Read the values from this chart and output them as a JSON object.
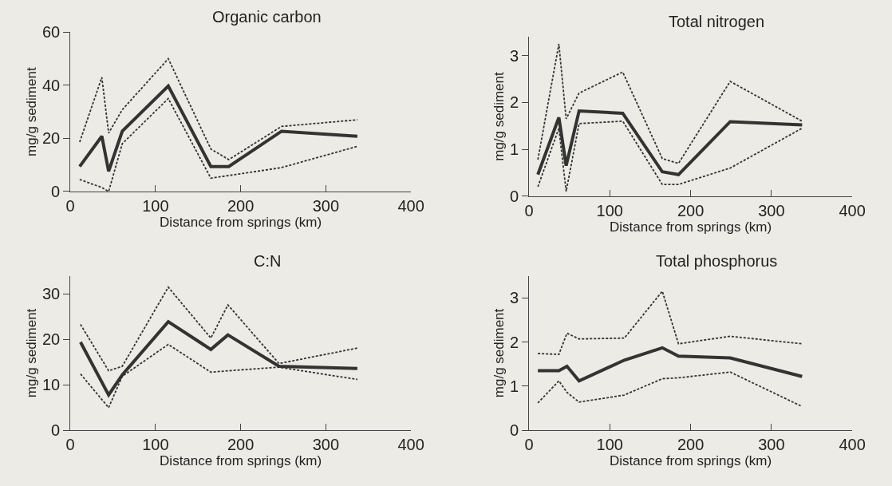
{
  "chart_data": [
    {
      "type": "line",
      "title": "Organic carbon",
      "xlabel": "Distance from springs (km)",
      "ylabel": "mg/g sediment",
      "x": [
        11,
        37,
        45,
        61,
        115,
        165,
        186,
        248,
        337
      ],
      "xlim": [
        0,
        400
      ],
      "xticks": [
        0,
        100,
        200,
        300,
        400
      ],
      "ylim": [
        0,
        60
      ],
      "yticks": [
        0,
        20,
        40,
        60
      ],
      "grid": false,
      "line_style": "solid",
      "series": [
        {
          "color": "#333333",
          "values": [
            9.4,
            20.8,
            7.6,
            22.7,
            39.7,
            9.4,
            9.4,
            22.7,
            20.8
          ]
        },
        {
          "color": "#333333",
          "line_style": "dotted",
          "values": [
            4.5,
            1.5,
            0,
            18,
            35,
            5,
            6,
            9,
            17
          ]
        },
        {
          "color": "#333333",
          "line_style": "dotted",
          "values": [
            18.6,
            43,
            22,
            30.8,
            50,
            16,
            12,
            24.5,
            27
          ]
        }
      ]
    },
    {
      "type": "line",
      "title": "Total nitrogen",
      "xlabel": "Distance from springs (km)",
      "ylabel": "mg/g sediment",
      "x": [
        11,
        37,
        46,
        62,
        116,
        165,
        185,
        249,
        338
      ],
      "xlim": [
        0,
        400
      ],
      "xticks": [
        0,
        100,
        200,
        300,
        400
      ],
      "ylim": [
        0,
        3.4
      ],
      "yticks": [
        0,
        1,
        2,
        3
      ],
      "grid": false,
      "line_style": "solid",
      "series": [
        {
          "color": "#333333",
          "values": [
            0.46,
            1.68,
            0.65,
            1.82,
            1.77,
            0.52,
            0.46,
            1.59,
            1.52
          ]
        },
        {
          "color": "#333333",
          "line_style": "dotted",
          "values": [
            0.2,
            1.45,
            0.1,
            1.55,
            1.6,
            0.25,
            0.25,
            0.6,
            1.45
          ]
        },
        {
          "color": "#333333",
          "line_style": "dotted",
          "values": [
            0.78,
            3.25,
            1.65,
            2.2,
            2.65,
            0.8,
            0.7,
            2.45,
            1.6
          ]
        }
      ]
    },
    {
      "type": "line",
      "title": "C:N",
      "xlabel": "Distance from springs (km)",
      "ylabel": "mg/g sediment",
      "x": [
        12,
        45,
        61,
        115,
        165,
        185,
        245,
        337
      ],
      "xlim": [
        0,
        400
      ],
      "xticks": [
        0,
        100,
        200,
        300,
        400
      ],
      "ylim": [
        0,
        34
      ],
      "yticks": [
        0,
        10,
        20,
        30
      ],
      "grid": false,
      "line_style": "solid",
      "series": [
        {
          "color": "#333333",
          "values": [
            19.4,
            7.8,
            12.2,
            23.9,
            17.8,
            21,
            14.1,
            13.6
          ]
        },
        {
          "color": "#333333",
          "line_style": "dotted",
          "values": [
            12.4,
            5,
            11.9,
            18.9,
            12.8,
            13.1,
            13.9,
            11.2
          ]
        },
        {
          "color": "#333333",
          "line_style": "dotted",
          "values": [
            23.3,
            13.1,
            14.1,
            31.5,
            20.3,
            27.6,
            14.7,
            18.1
          ]
        }
      ]
    },
    {
      "type": "line",
      "title": "Total phosphorus",
      "xlabel": "Distance from springs (km)",
      "ylabel": "mg/g sediment",
      "x": [
        11,
        37,
        47,
        62,
        118,
        165,
        185,
        249,
        338
      ],
      "xlim": [
        0,
        400
      ],
      "xticks": [
        0,
        100,
        200,
        300,
        400
      ],
      "ylim": [
        0,
        3.5
      ],
      "yticks": [
        0,
        1,
        2,
        3
      ],
      "grid": false,
      "line_style": "solid",
      "series": [
        {
          "color": "#333333",
          "values": [
            1.35,
            1.35,
            1.45,
            1.12,
            1.59,
            1.87,
            1.68,
            1.64,
            1.22
          ]
        },
        {
          "color": "#333333",
          "line_style": "dotted",
          "values": [
            0.62,
            1.12,
            0.86,
            0.64,
            0.8,
            1.17,
            1.19,
            1.32,
            0.54
          ]
        },
        {
          "color": "#333333",
          "line_style": "dotted",
          "values": [
            1.74,
            1.72,
            2.2,
            2.07,
            2.09,
            3.15,
            1.96,
            2.13,
            1.96
          ]
        }
      ]
    }
  ]
}
